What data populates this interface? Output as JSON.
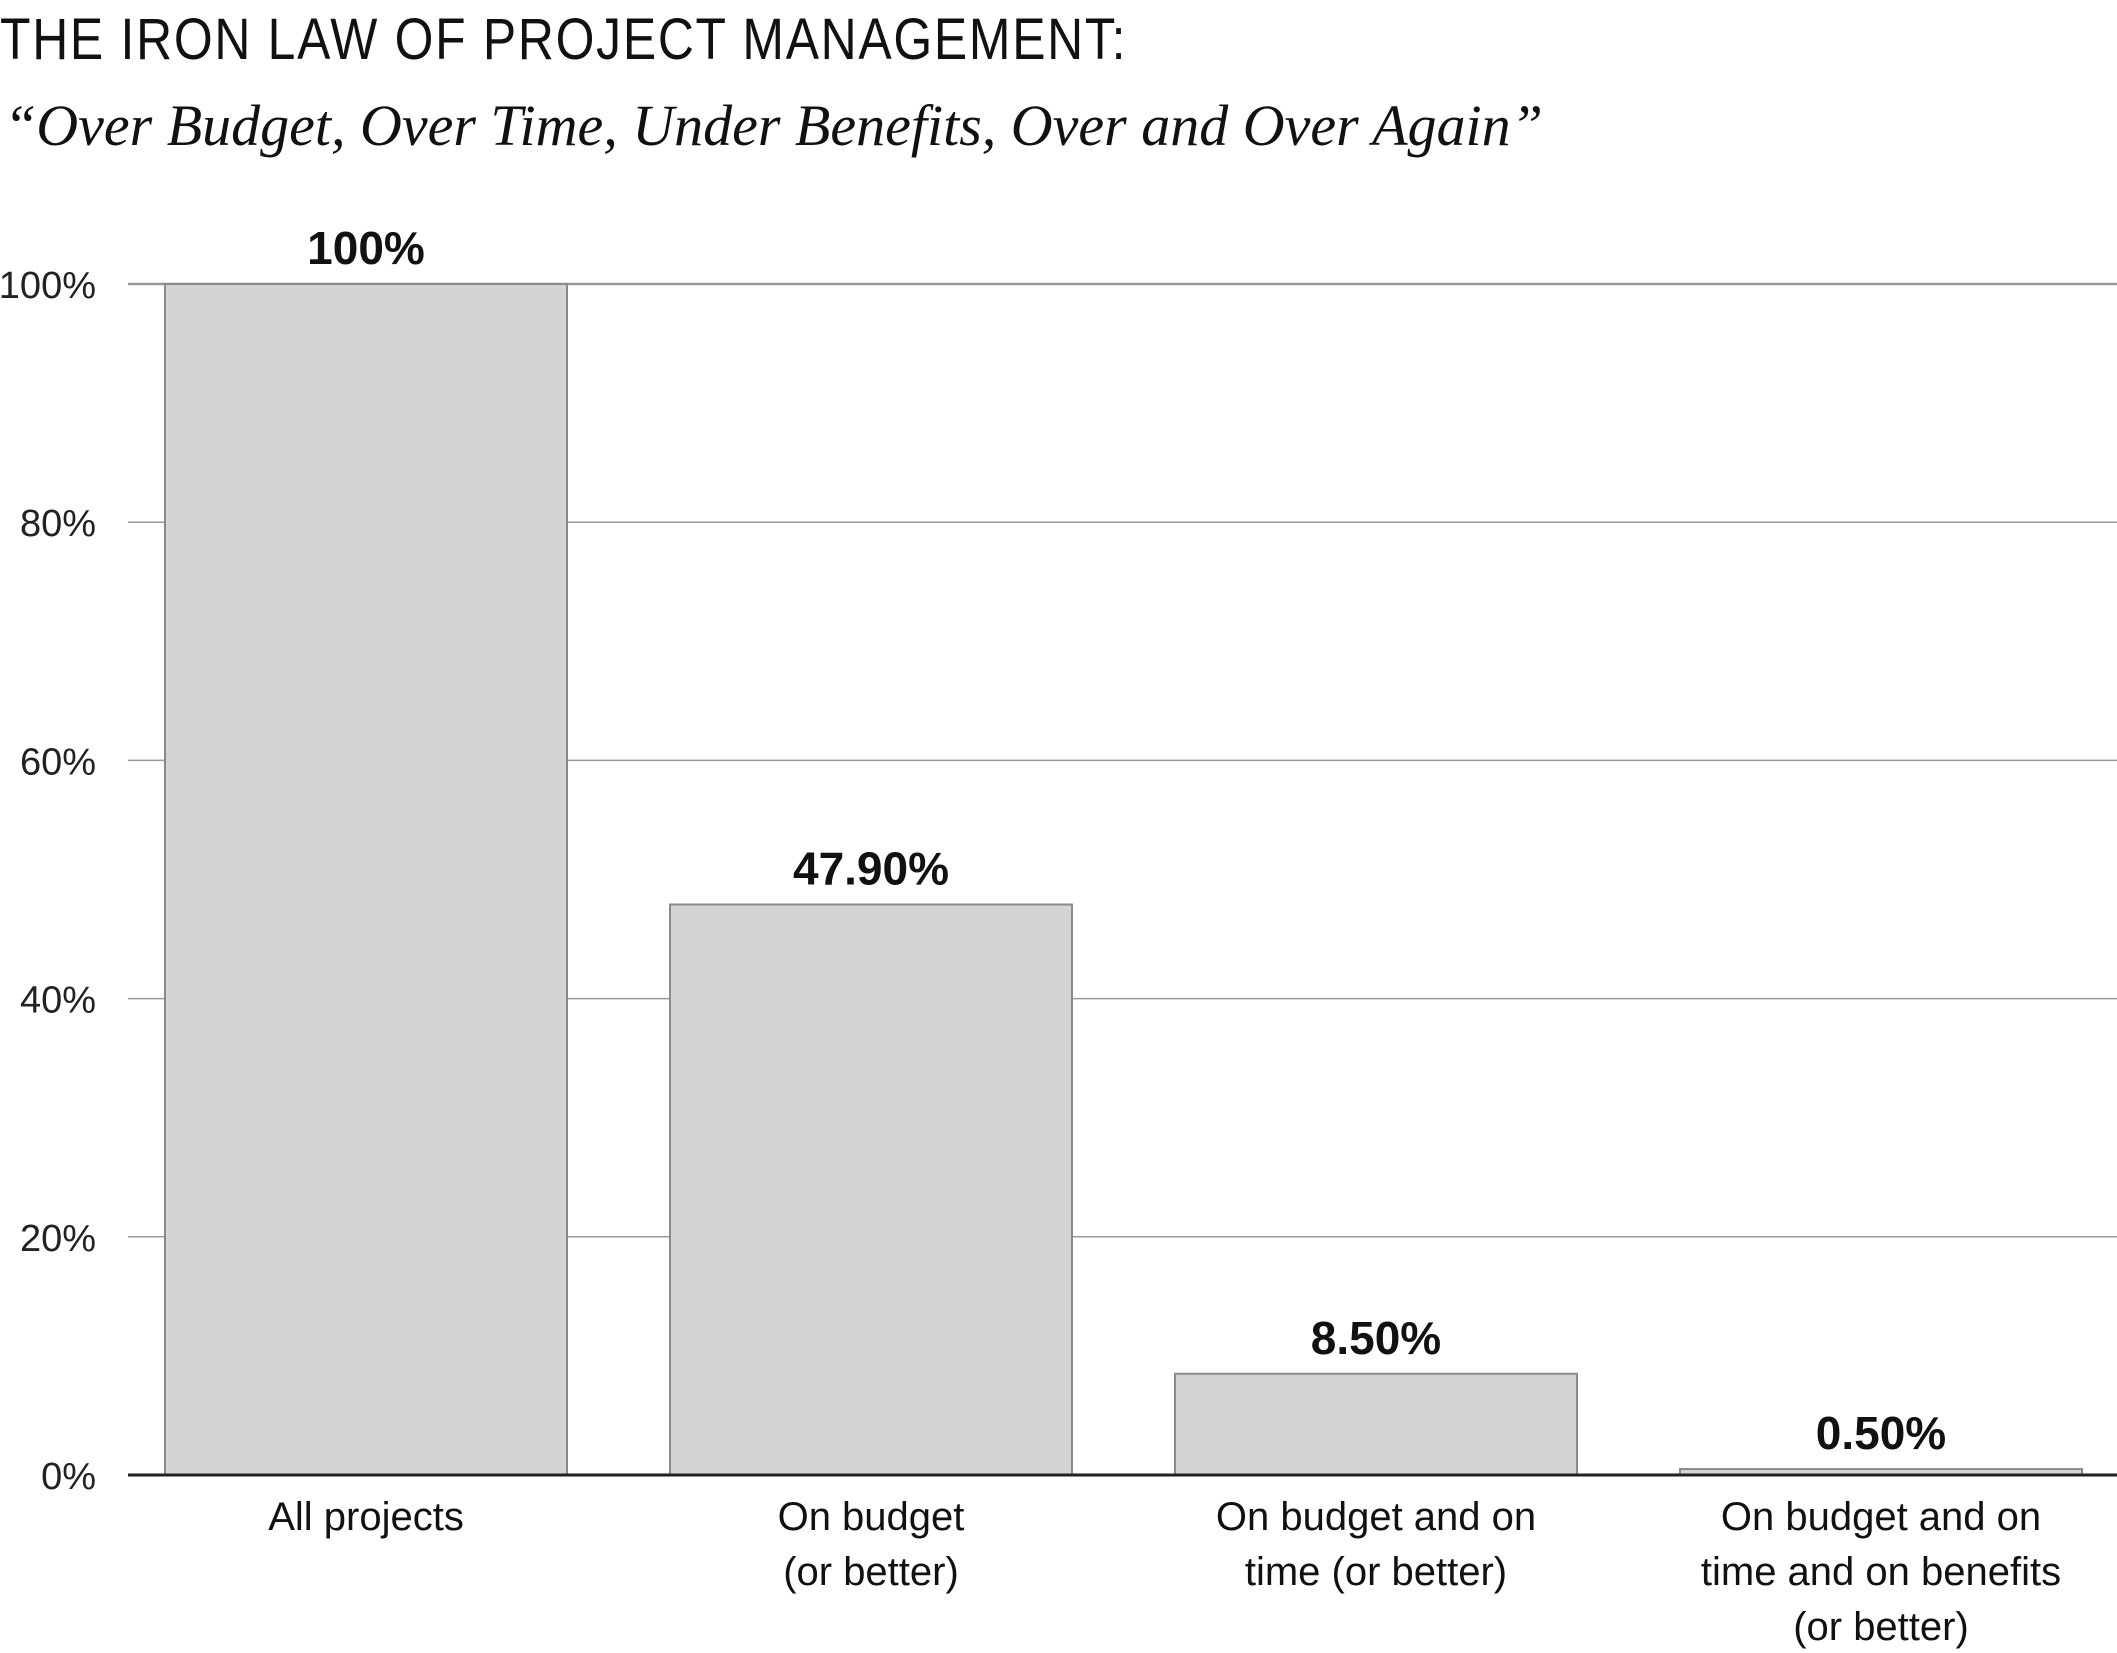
{
  "header": {
    "title": "THE IRON LAW OF PROJECT MANAGEMENT:",
    "subtitle": "“Over Budget, Over Time, Under Benefits, Over and Over Again”"
  },
  "chart_data": {
    "type": "bar",
    "title": "THE IRON LAW OF PROJECT MANAGEMENT:",
    "subtitle": "“Over Budget, Over Time, Under Benefits, Over and Over Again”",
    "xlabel": "",
    "ylabel": "",
    "ylim": [
      0,
      100
    ],
    "yticks": [
      0,
      20,
      40,
      60,
      80,
      100
    ],
    "ytick_labels": [
      "0%",
      "20%",
      "40%",
      "60%",
      "80%",
      "100%"
    ],
    "grid": true,
    "legend": "none",
    "categories": [
      [
        "All projects"
      ],
      [
        "On budget",
        "(or better)"
      ],
      [
        "On budget and on",
        "time (or better)"
      ],
      [
        "On budget and on",
        "time and on benefits",
        "(or better)"
      ]
    ],
    "values": [
      100,
      47.9,
      8.5,
      0.5
    ],
    "value_labels": [
      "100%",
      "47.90%",
      "8.50%",
      "0.50%"
    ],
    "colors": {
      "bar_fill": "#d4d4d4",
      "bar_stroke": "#8a8a8a",
      "grid": "#9a9a9a",
      "axis": "#222222"
    }
  }
}
